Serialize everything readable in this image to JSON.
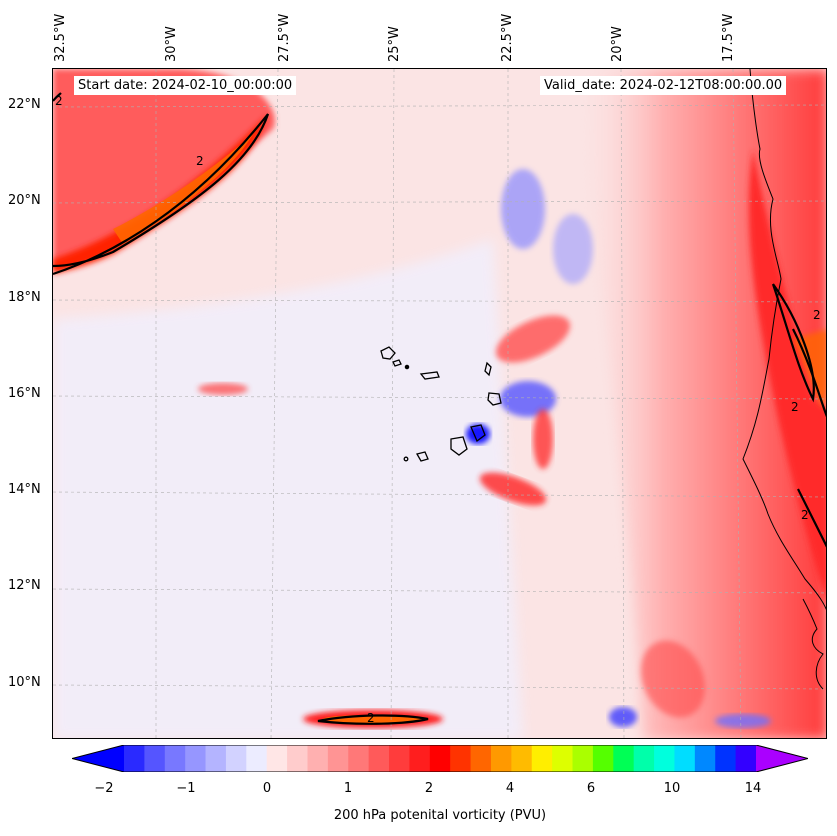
{
  "header": {
    "start_date": "Start date: 2024-02-10_00:00:00",
    "valid_date": "Valid_date: 2024-02-12T08:00:00.00"
  },
  "axes": {
    "longitude_labels": [
      "32.5°W",
      "30°W",
      "27.5°W",
      "25°W",
      "22.5°W",
      "20°W",
      "17.5°W"
    ],
    "latitude_labels": [
      "22°N",
      "20°N",
      "18°N",
      "16°N",
      "14°N",
      "12°N",
      "10°N"
    ]
  },
  "contour_labels": [
    "2",
    "2",
    "2",
    "2",
    "2",
    "2"
  ],
  "colorbar": {
    "ticks": [
      "−2",
      "−1",
      "0",
      "1",
      "2",
      "4",
      "6",
      "10",
      "14"
    ],
    "label": "200 hPa potenital vorticity (PVU)",
    "colors": [
      "#0000ff",
      "#2a2aff",
      "#5555ff",
      "#7878ff",
      "#9696ff",
      "#b4b4ff",
      "#d2d2ff",
      "#ececff",
      "#ffe6e6",
      "#ffcccc",
      "#ffb0b0",
      "#ff9494",
      "#ff7878",
      "#ff5a5a",
      "#ff3c3c",
      "#ff1e1e",
      "#ff0000",
      "#ff3300",
      "#ff6600",
      "#ff9900",
      "#ffbb00",
      "#ffee00",
      "#ddff00",
      "#aaff00",
      "#55ff00",
      "#00ff55",
      "#00ffaa",
      "#00ffdd",
      "#00ddff",
      "#0088ff",
      "#0033ff",
      "#3300ff",
      "#aa00ff"
    ]
  }
}
